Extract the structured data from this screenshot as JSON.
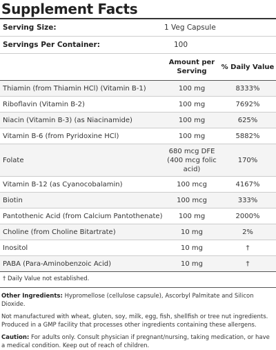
{
  "title": "Supplement Facts",
  "serving": {
    "size_label": "Serving Size:",
    "size_value": "1 Veg Capsule",
    "per_container_label": "Servings Per Container:",
    "per_container_value": "100"
  },
  "header": {
    "amount_line1": "Amount per",
    "amount_line2": "Serving",
    "dv": "% Daily Value"
  },
  "nutrients": [
    {
      "name": "Thiamin (from Thiamin HCl) (Vitamin B-1)",
      "amount": "100 mg",
      "dv": "8333%"
    },
    {
      "name": "Riboflavin (Vitamin B-2)",
      "amount": "100 mg",
      "dv": "7692%"
    },
    {
      "name": "Niacin (Vitamin B-3) (as Niacinamide)",
      "amount": "100 mg",
      "dv": "625%"
    },
    {
      "name": "Vitamin B-6 (from Pyridoxine HCl)",
      "amount": "100 mg",
      "dv": "5882%"
    },
    {
      "name": "Folate",
      "amount_line1": "680 mcg DFE",
      "amount_line2": "(400 mcg folic",
      "amount_line3": "acid)",
      "dv": "170%"
    },
    {
      "name": "Vitamin B-12 (as Cyanocobalamin)",
      "amount": "100 mcg",
      "dv": "4167%"
    },
    {
      "name": "Biotin",
      "amount": "100 mcg",
      "dv": "333%"
    },
    {
      "name": "Pantothenic Acid (from Calcium Pantothenate)",
      "amount": "100 mg",
      "dv": "2000%"
    },
    {
      "name": "Choline (from Choline Bitartrate)",
      "amount": "10 mg",
      "dv": "2%"
    },
    {
      "name": "Inositol",
      "amount": "10 mg",
      "dv": "†"
    },
    {
      "name": "PABA (Para-Aminobenzoic Acid)",
      "amount": "10 mg",
      "dv": "†"
    }
  ],
  "footnote": "† Daily Value not established.",
  "other_ingredients": {
    "label": "Other Ingredients:",
    "text": "Hypromellose (cellulose capsule), Ascorbyl Palmitate and Silicon Dioxide."
  },
  "allergen_note": "Not manufactured with wheat, gluten, soy, milk, egg, fish, shellfish or tree nut ingredients. Produced in a GMP facility that processes other ingredients containing these allergens.",
  "caution": {
    "label": "Caution:",
    "text": "For adults only. Consult physician if pregnant/nursing, taking medication, or have a medical condition. Keep out of reach of children."
  }
}
